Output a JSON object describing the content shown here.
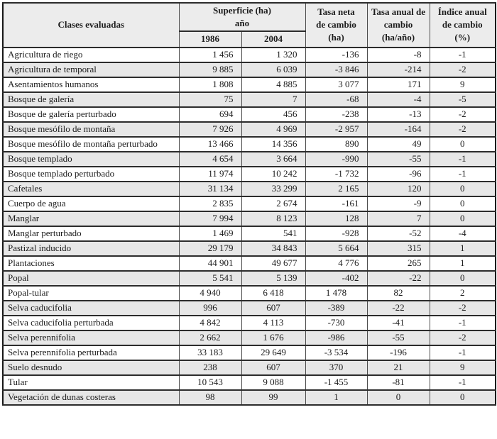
{
  "header": {
    "clases": "Clases evaluadas",
    "superficie": "Superficie (ha)\naño",
    "y1986": "1986",
    "y2004": "2004",
    "tasa_neta": "Tasa neta\nde cambio\n(ha)",
    "tasa_anual": "Tasa anual de\ncambio\n(ha/año)",
    "indice": "Índice anual\nde cambio\n(%)"
  },
  "rows": [
    {
      "clase": "Agricultura de riego",
      "v": [
        "1 456",
        "1 320",
        "-136",
        "-8",
        "-1"
      ],
      "num_align": "right"
    },
    {
      "clase": "Agricultura de temporal",
      "v": [
        "9 885",
        "6 039",
        "-3 846",
        "-214",
        "-2"
      ],
      "num_align": "right"
    },
    {
      "clase": "Asentamientos humanos",
      "v": [
        "1 808",
        "4 885",
        "3 077",
        "171",
        "9"
      ],
      "num_align": "right"
    },
    {
      "clase": "Bosque de galería",
      "v": [
        "75",
        "7",
        "-68",
        "-4",
        "-5"
      ],
      "num_align": "right"
    },
    {
      "clase": "Bosque de galería perturbado",
      "v": [
        "694",
        "456",
        "-238",
        "-13",
        "-2"
      ],
      "num_align": "right"
    },
    {
      "clase": "Bosque mesófilo de montaña",
      "v": [
        "7 926",
        "4 969",
        "-2 957",
        "-164",
        "-2"
      ],
      "num_align": "right"
    },
    {
      "clase": "Bosque mesófilo de montaña perturbado",
      "v": [
        "13 466",
        "14 356",
        "890",
        "49",
        "0"
      ],
      "num_align": "right"
    },
    {
      "clase": "Bosque templado",
      "v": [
        "4 654",
        "3 664",
        "-990",
        "-55",
        "-1"
      ],
      "num_align": "right"
    },
    {
      "clase": "Bosque templado perturbado",
      "v": [
        "11 974",
        "10 242",
        "-1 732",
        "-96",
        "-1"
      ],
      "num_align": "right"
    },
    {
      "clase": "Cafetales",
      "v": [
        "31 134",
        "33 299",
        "2 165",
        "120",
        "0"
      ],
      "num_align": "right"
    },
    {
      "clase": "Cuerpo de agua",
      "v": [
        "2 835",
        "2 674",
        "-161",
        "-9",
        "0"
      ],
      "num_align": "right"
    },
    {
      "clase": "Manglar",
      "v": [
        "7 994",
        "8 123",
        "128",
        "7",
        "0"
      ],
      "num_align": "right"
    },
    {
      "clase": "Manglar perturbado",
      "v": [
        "1 469",
        "541",
        "-928",
        "-52",
        "-4"
      ],
      "num_align": "right"
    },
    {
      "clase": "Pastizal inducido",
      "v": [
        "29 179",
        "34 843",
        "5 664",
        "315",
        "1"
      ],
      "num_align": "right"
    },
    {
      "clase": "Plantaciones",
      "v": [
        "44 901",
        "49 677",
        "4 776",
        "265",
        "1"
      ],
      "num_align": "right"
    },
    {
      "clase": "Popal",
      "v": [
        "5 541",
        "5 139",
        "-402",
        "-22",
        "0"
      ],
      "num_align": "right"
    },
    {
      "clase": "Popal-tular",
      "v": [
        "4 940",
        "6 418",
        "1 478",
        "82",
        "2"
      ],
      "num_align": "center"
    },
    {
      "clase": "Selva caducifolia",
      "v": [
        "996",
        "607",
        "-389",
        "-22",
        "-2"
      ],
      "num_align": "center"
    },
    {
      "clase": "Selva caducifolia perturbada",
      "v": [
        "4 842",
        "4 113",
        "-730",
        "-41",
        "-1"
      ],
      "num_align": "center"
    },
    {
      "clase": "Selva perennifolia",
      "v": [
        "2 662",
        "1 676",
        "-986",
        "-55",
        "-2"
      ],
      "num_align": "center"
    },
    {
      "clase": "Selva perennifolia perturbada",
      "v": [
        "33 183",
        "29 649",
        "-3 534",
        "-196",
        "-1"
      ],
      "num_align": "center"
    },
    {
      "clase": "Suelo desnudo",
      "v": [
        "238",
        "607",
        "370",
        "21",
        "9"
      ],
      "num_align": "center"
    },
    {
      "clase": "Tular",
      "v": [
        "10 543",
        "9 088",
        "-1 455",
        "-81",
        "-1"
      ],
      "num_align": "center"
    },
    {
      "clase": "Vegetación de dunas costeras",
      "v": [
        "98",
        "99",
        "1",
        "0",
        "0"
      ],
      "num_align": "center"
    }
  ],
  "colors": {
    "stripe_row_bg": "#e7e7e7",
    "header_bg": "#ececec",
    "border_outer": "#161616",
    "border_horizontal": "#2c2c2c",
    "border_vertical": "#4c4c4c",
    "text": "#1c1c1c"
  }
}
